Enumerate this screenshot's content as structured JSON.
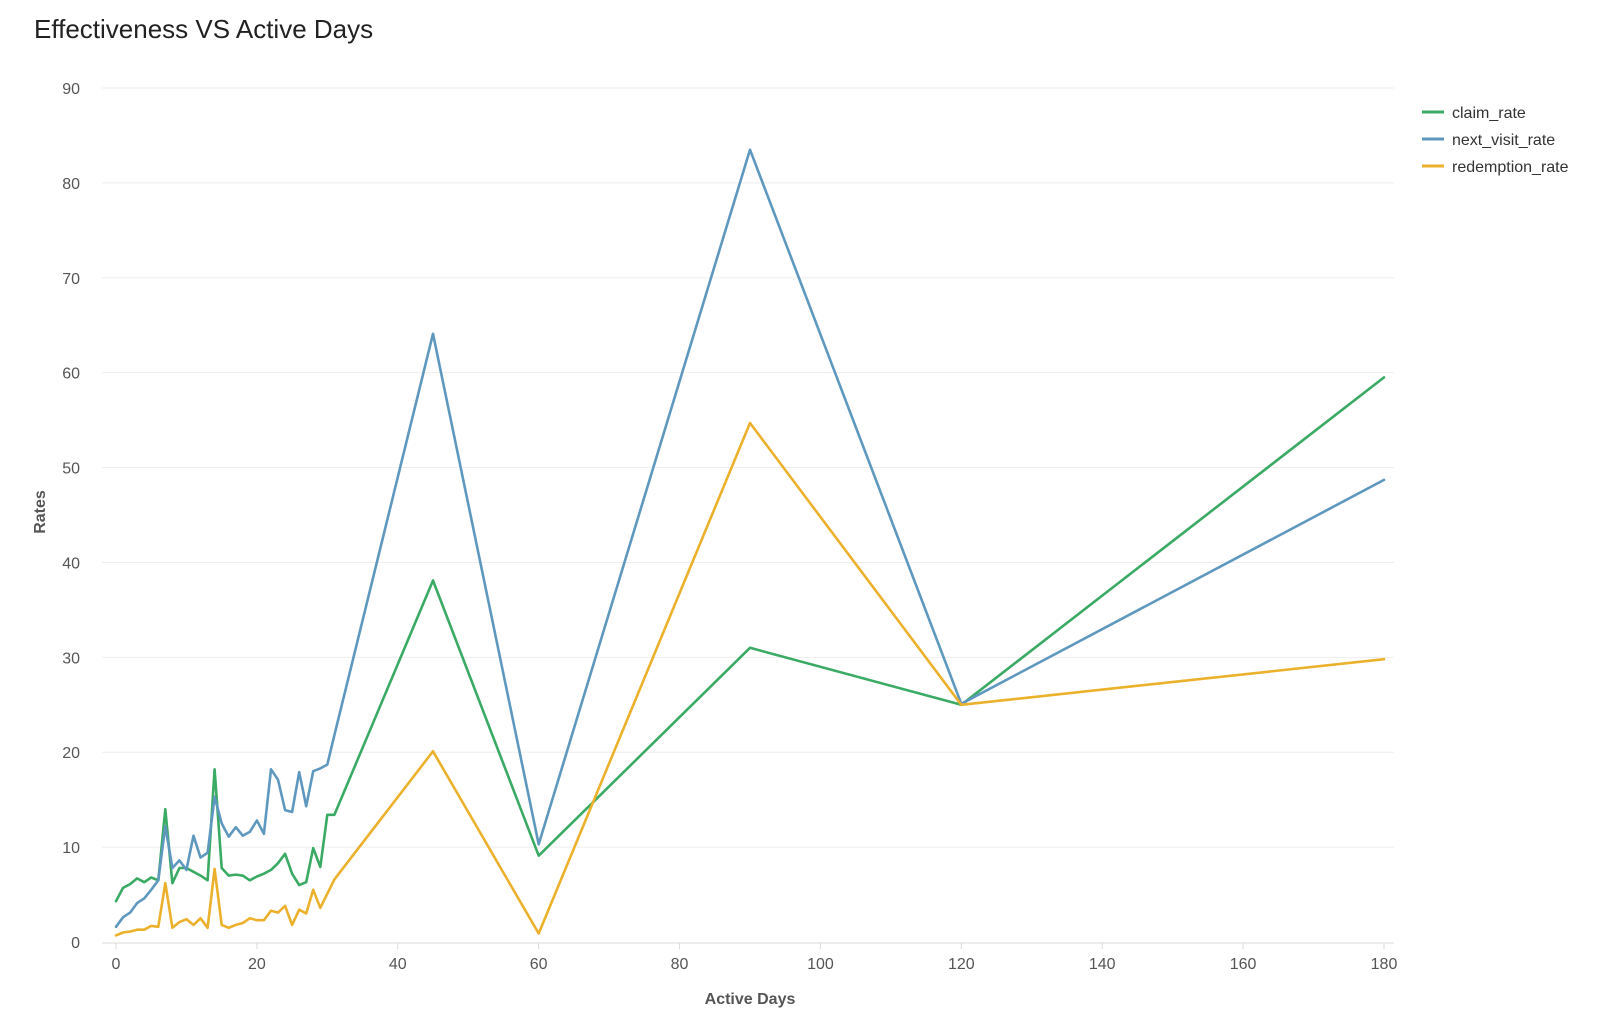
{
  "chart_data": {
    "type": "line",
    "title": "Effectiveness VS Active Days",
    "xlabel": "Active Days",
    "ylabel": "Rates",
    "xlim": [
      0,
      180
    ],
    "ylim": [
      0,
      90
    ],
    "x_ticks": [
      0,
      20,
      40,
      60,
      80,
      100,
      120,
      140,
      160,
      180
    ],
    "y_ticks": [
      0,
      10,
      20,
      30,
      40,
      50,
      60,
      70,
      80,
      90
    ],
    "grid": "horizontal",
    "legend_position": "top-right",
    "series": [
      {
        "name": "claim_rate",
        "color": "#3aaa64",
        "points": [
          [
            0,
            4.3
          ],
          [
            1,
            5.7
          ],
          [
            2,
            6.1
          ],
          [
            3,
            6.7
          ],
          [
            4,
            6.3
          ],
          [
            5,
            6.8
          ],
          [
            6,
            6.5
          ],
          [
            7,
            14
          ],
          [
            8,
            6.2
          ],
          [
            9,
            7.8
          ],
          [
            10,
            7.8
          ],
          [
            11,
            7.4
          ],
          [
            12,
            7.0
          ],
          [
            13,
            6.5
          ],
          [
            14,
            18.2
          ],
          [
            15,
            7.8
          ],
          [
            16,
            7.0
          ],
          [
            17,
            7.1
          ],
          [
            18,
            7.0
          ],
          [
            19,
            6.5
          ],
          [
            20,
            6.9
          ],
          [
            21,
            7.2
          ],
          [
            22,
            7.6
          ],
          [
            23,
            8.3
          ],
          [
            24,
            9.3
          ],
          [
            25,
            7.2
          ],
          [
            26,
            6.0
          ],
          [
            27,
            6.3
          ],
          [
            28,
            9.9
          ],
          [
            29,
            7.9
          ],
          [
            30,
            13.4
          ],
          [
            31,
            13.4
          ],
          [
            45,
            38.1
          ],
          [
            60,
            9.1
          ],
          [
            90,
            31.0
          ],
          [
            120,
            25.0
          ],
          [
            180,
            59.5
          ]
        ]
      },
      {
        "name": "next_visit_rate",
        "color": "#5f98bf",
        "points": [
          [
            0,
            1.6
          ],
          [
            1,
            2.6
          ],
          [
            2,
            3.1
          ],
          [
            3,
            4.1
          ],
          [
            4,
            4.6
          ],
          [
            5,
            5.5
          ],
          [
            6,
            6.5
          ],
          [
            7,
            12.2
          ],
          [
            8,
            7.8
          ],
          [
            9,
            8.6
          ],
          [
            10,
            7.6
          ],
          [
            11,
            11.2
          ],
          [
            12,
            8.9
          ],
          [
            13,
            9.4
          ],
          [
            14,
            15.3
          ],
          [
            15,
            12.5
          ],
          [
            16,
            11.1
          ],
          [
            17,
            12.1
          ],
          [
            18,
            11.2
          ],
          [
            19,
            11.6
          ],
          [
            20,
            12.8
          ],
          [
            21,
            11.4
          ],
          [
            22,
            18.2
          ],
          [
            23,
            17.1
          ],
          [
            24,
            13.9
          ],
          [
            25,
            13.7
          ],
          [
            26,
            17.9
          ],
          [
            27,
            14.3
          ],
          [
            28,
            18.0
          ],
          [
            29,
            18.3
          ],
          [
            30,
            18.7
          ],
          [
            31,
            21.8
          ],
          [
            45,
            64.1
          ],
          [
            60,
            10.3
          ],
          [
            90,
            83.5
          ],
          [
            120,
            25.1
          ],
          [
            180,
            48.7
          ]
        ]
      },
      {
        "name": "redemption_rate",
        "color": "#ebb12c",
        "points": [
          [
            0,
            0.7
          ],
          [
            1,
            1.0
          ],
          [
            2,
            1.1
          ],
          [
            3,
            1.3
          ],
          [
            4,
            1.3
          ],
          [
            5,
            1.7
          ],
          [
            6,
            1.6
          ],
          [
            7,
            6.2
          ],
          [
            8,
            1.5
          ],
          [
            9,
            2.1
          ],
          [
            10,
            2.4
          ],
          [
            11,
            1.8
          ],
          [
            12,
            2.5
          ],
          [
            13,
            1.5
          ],
          [
            14,
            7.7
          ],
          [
            15,
            1.8
          ],
          [
            16,
            1.5
          ],
          [
            17,
            1.8
          ],
          [
            18,
            2.0
          ],
          [
            19,
            2.5
          ],
          [
            20,
            2.3
          ],
          [
            21,
            2.3
          ],
          [
            22,
            3.3
          ],
          [
            23,
            3.1
          ],
          [
            24,
            3.8
          ],
          [
            25,
            1.8
          ],
          [
            26,
            3.4
          ],
          [
            27,
            3.0
          ],
          [
            28,
            5.5
          ],
          [
            29,
            3.6
          ],
          [
            31,
            6.6
          ],
          [
            45,
            20.1
          ],
          [
            60,
            0.9
          ],
          [
            90,
            54.7
          ],
          [
            120,
            25.0
          ],
          [
            180,
            29.8
          ]
        ]
      }
    ]
  }
}
